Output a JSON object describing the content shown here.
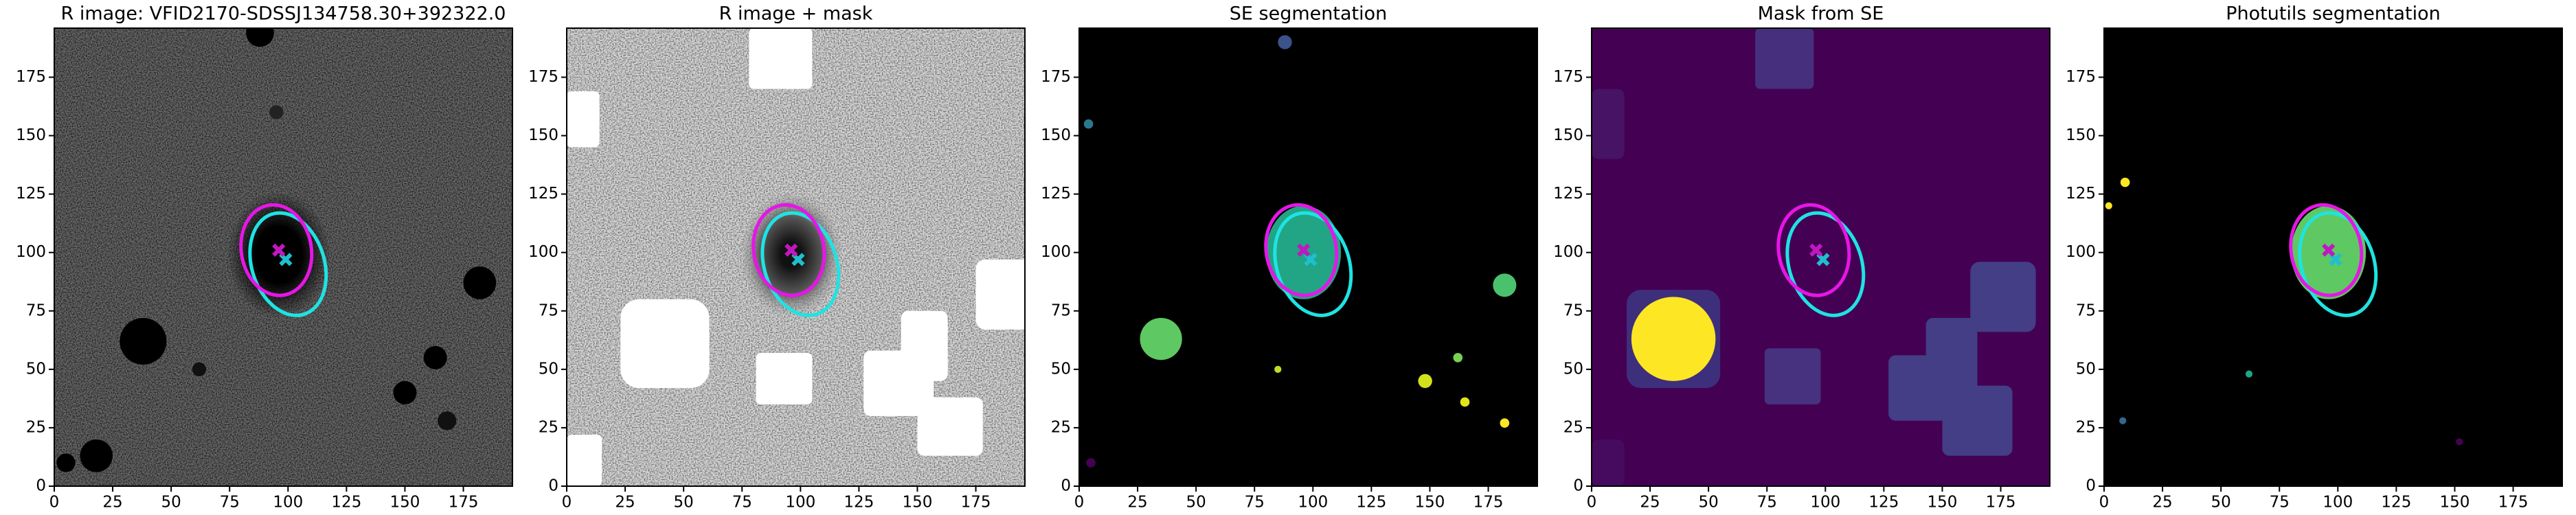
{
  "chart_data": [
    {
      "type": "image",
      "title": "R image: VFID2170-SDSSJ134758.30+392322.0",
      "xlim": [
        0,
        196
      ],
      "ylim": [
        0,
        196
      ],
      "xticks": [
        0,
        25,
        50,
        75,
        100,
        125,
        150,
        175
      ],
      "yticks": [
        0,
        25,
        50,
        75,
        100,
        125,
        150,
        175
      ]
    },
    {
      "type": "image",
      "title": "R image + mask",
      "xlim": [
        0,
        196
      ],
      "ylim": [
        0,
        196
      ],
      "xticks": [
        0,
        25,
        50,
        75,
        100,
        125,
        150,
        175
      ],
      "yticks": [
        0,
        25,
        50,
        75,
        100,
        125,
        150,
        175
      ]
    },
    {
      "type": "image",
      "title": "SE segmentation",
      "xlim": [
        0,
        196
      ],
      "ylim": [
        0,
        196
      ],
      "xticks": [
        0,
        25,
        50,
        75,
        100,
        125,
        150,
        175
      ],
      "yticks": [
        0,
        25,
        50,
        75,
        100,
        125,
        150,
        175
      ]
    },
    {
      "type": "image",
      "title": "Mask from SE",
      "xlim": [
        0,
        196
      ],
      "ylim": [
        0,
        196
      ],
      "xticks": [
        0,
        25,
        50,
        75,
        100,
        125,
        150,
        175
      ],
      "yticks": [
        0,
        25,
        50,
        75,
        100,
        125,
        150,
        175
      ]
    },
    {
      "type": "image",
      "title": "Photutils segmentation",
      "xlim": [
        0,
        196
      ],
      "ylim": [
        0,
        196
      ],
      "xticks": [
        0,
        25,
        50,
        75,
        100,
        125,
        150,
        175
      ],
      "yticks": [
        0,
        25,
        50,
        75,
        100,
        125,
        150,
        175
      ]
    }
  ]
}
